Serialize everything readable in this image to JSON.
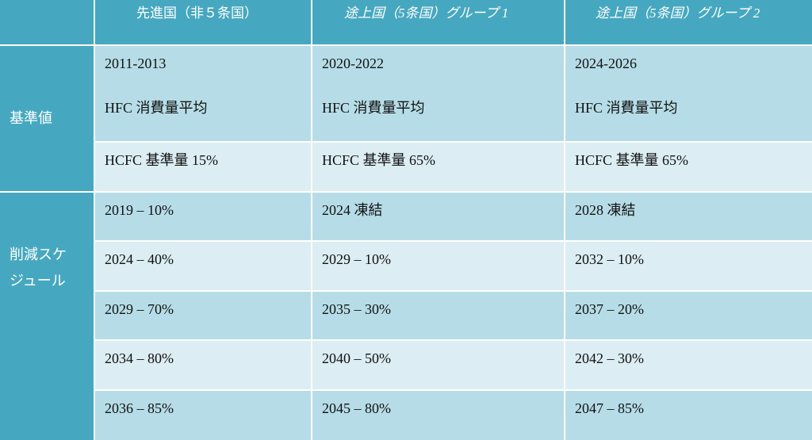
{
  "header": {
    "blank": "",
    "col1": "先進国（非５条国）",
    "col2": "途上国（5条国）グループ 1",
    "col3": "途上国（5条国）グループ 2"
  },
  "rows": {
    "baseline_label": "基準値",
    "schedule_label_line1": "削減スケ",
    "schedule_label_line2": "ジュール"
  },
  "baseline": {
    "period": [
      "2011-2013",
      "2020-2022",
      "2024-2026"
    ],
    "hfc": [
      "HFC 消費量平均",
      "HFC 消費量平均",
      "HFC 消費量平均"
    ],
    "hcfc": [
      "HCFC 基準量 15%",
      "HCFC 基準量 65%",
      "HCFC 基準量 65%"
    ]
  },
  "schedule": [
    [
      "2019 – 10%",
      "2024 凍結",
      "2028 凍結"
    ],
    [
      "2024 – 40%",
      "2029 – 10%",
      "2032 – 10%"
    ],
    [
      "2029 – 70%",
      "2035 – 30%",
      "2037 – 20%"
    ],
    [
      "2034 – 80%",
      "2040 – 50%",
      "2042 – 30%"
    ],
    [
      "2036 – 85%",
      "2045 – 80%",
      "2047 – 85%"
    ]
  ],
  "colors": {
    "header_bg": "#46a8c0",
    "row_dark": "#b6dde7",
    "row_light": "#dcedf3"
  }
}
